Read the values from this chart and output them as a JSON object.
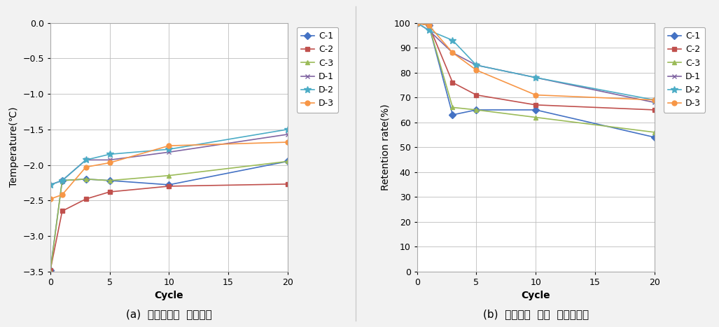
{
  "left_chart": {
    "title": "",
    "xlabel": "Cycle",
    "ylabel": "Temperature(℃)",
    "xlim": [
      0,
      20
    ],
    "ylim": [
      -3.5,
      0.0
    ],
    "yticks": [
      0.0,
      -0.5,
      -1.0,
      -1.5,
      -2.0,
      -2.5,
      -3.0,
      -3.5
    ],
    "xticks": [
      0,
      5,
      10,
      15,
      20
    ],
    "series": {
      "C-1": {
        "x": [
          0,
          1,
          3,
          5,
          10,
          20
        ],
        "y": [
          -3.48,
          -2.22,
          -2.2,
          -2.22,
          -2.28,
          -1.95
        ],
        "color": "#4472C4",
        "marker": "D",
        "linestyle": "-"
      },
      "C-2": {
        "x": [
          0,
          1,
          3,
          5,
          10,
          20
        ],
        "y": [
          -3.48,
          -2.65,
          -2.48,
          -2.38,
          -2.3,
          -2.27
        ],
        "color": "#C0504D",
        "marker": "s",
        "linestyle": "-"
      },
      "C-3": {
        "x": [
          0,
          1,
          3,
          5,
          10,
          20
        ],
        "y": [
          -3.5,
          -2.22,
          -2.2,
          -2.22,
          -2.15,
          -1.95
        ],
        "color": "#9BBB59",
        "marker": "^",
        "linestyle": "-"
      },
      "D-1": {
        "x": [
          0,
          1,
          3,
          5,
          10,
          20
        ],
        "y": [
          -2.28,
          -2.22,
          -1.93,
          -1.93,
          -1.82,
          -1.57
        ],
        "color": "#8064A2",
        "marker": "x",
        "linestyle": "-"
      },
      "D-2": {
        "x": [
          0,
          1,
          3,
          5,
          10,
          20
        ],
        "y": [
          -2.28,
          -2.22,
          -1.93,
          -1.85,
          -1.78,
          -1.5
        ],
        "color": "#4BACC6",
        "marker": "*",
        "linestyle": "-"
      },
      "D-3": {
        "x": [
          0,
          1,
          3,
          5,
          10,
          20
        ],
        "y": [
          -2.48,
          -2.42,
          -2.03,
          -1.97,
          -1.73,
          -1.68
        ],
        "color": "#F79646",
        "marker": "o",
        "linestyle": "-"
      }
    }
  },
  "right_chart": {
    "title": "",
    "xlabel": "Cycle",
    "ylabel": "Retention rate(%)",
    "xlim": [
      0,
      20
    ],
    "ylim": [
      0,
      100
    ],
    "yticks": [
      0,
      10,
      20,
      30,
      40,
      50,
      60,
      70,
      80,
      90,
      100
    ],
    "xticks": [
      0,
      5,
      10,
      15,
      20
    ],
    "series": {
      "C-1": {
        "x": [
          0,
          1,
          3,
          5,
          10,
          20
        ],
        "y": [
          100,
          99,
          63,
          65,
          65,
          54
        ],
        "color": "#4472C4",
        "marker": "D",
        "linestyle": "-"
      },
      "C-2": {
        "x": [
          0,
          1,
          3,
          5,
          10,
          20
        ],
        "y": [
          100,
          99,
          76,
          71,
          67,
          65
        ],
        "color": "#C0504D",
        "marker": "s",
        "linestyle": "-"
      },
      "C-3": {
        "x": [
          0,
          1,
          3,
          5,
          10,
          20
        ],
        "y": [
          100,
          99,
          66,
          65,
          62,
          56
        ],
        "color": "#9BBB59",
        "marker": "^",
        "linestyle": "-"
      },
      "D-1": {
        "x": [
          0,
          1,
          3,
          5,
          10,
          20
        ],
        "y": [
          100,
          97,
          88,
          83,
          78,
          68
        ],
        "color": "#8064A2",
        "marker": "x",
        "linestyle": "-"
      },
      "D-2": {
        "x": [
          0,
          1,
          3,
          5,
          10,
          20
        ],
        "y": [
          100,
          97,
          93,
          83,
          78,
          69
        ],
        "color": "#4BACC6",
        "marker": "*",
        "linestyle": "-"
      },
      "D-3": {
        "x": [
          0,
          1,
          3,
          5,
          10,
          20
        ],
        "y": [
          100,
          99,
          88,
          81,
          71,
          69
        ],
        "color": "#F79646",
        "marker": "o",
        "linestyle": "-"
      }
    }
  },
  "caption_left": "(a)  대조편과의  온도차이",
  "caption_right": "(b)  초기상태  대비  성능유지율",
  "background_color": "#f2f2f2",
  "plot_bg_color": "#ffffff",
  "grid_color": "#c0c0c0",
  "legend_fontsize": 9,
  "axis_fontsize": 10,
  "tick_fontsize": 9,
  "caption_fontsize": 11
}
